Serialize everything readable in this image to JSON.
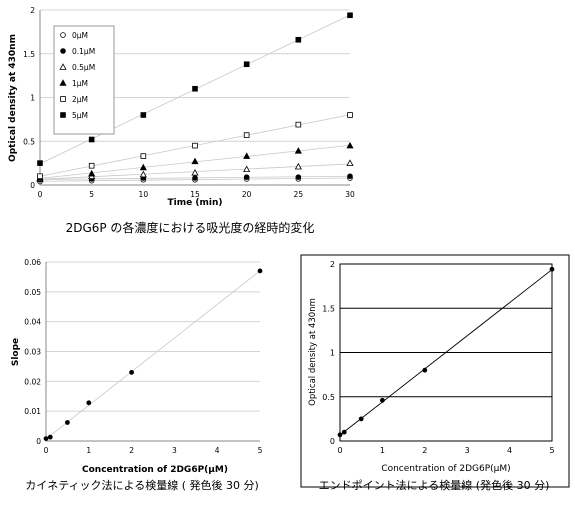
{
  "chart_data": [
    {
      "type": "scatter",
      "caption": "2DG6P の各濃度における吸光度の経時的変化",
      "xlabel": "Time (min)",
      "ylabel": "Optical density at 430nm",
      "xlim": [
        0,
        30
      ],
      "ylim": [
        0,
        2
      ],
      "xticks": [
        0,
        5,
        10,
        15,
        20,
        25,
        30
      ],
      "yticks": [
        0,
        0.5,
        1,
        1.5,
        2
      ],
      "ytick_labels": [
        "0",
        "0.5",
        "1",
        "1.5",
        "2"
      ],
      "grid": "horizontal",
      "legend_position": "top-left",
      "x": [
        0,
        5,
        10,
        15,
        20,
        25,
        30
      ],
      "series": [
        {
          "name": "0μM",
          "marker": "open-circle",
          "values": [
            0.04,
            0.05,
            0.06,
            0.06,
            0.07,
            0.07,
            0.08
          ]
        },
        {
          "name": "0.1μM",
          "marker": "filled-circle",
          "values": [
            0.06,
            0.07,
            0.08,
            0.08,
            0.09,
            0.09,
            0.1
          ]
        },
        {
          "name": "0.5μM",
          "marker": "open-triangle",
          "values": [
            0.07,
            0.1,
            0.12,
            0.14,
            0.18,
            0.21,
            0.25
          ]
        },
        {
          "name": "1μM",
          "marker": "filled-triangle",
          "values": [
            0.08,
            0.13,
            0.2,
            0.27,
            0.33,
            0.39,
            0.45
          ]
        },
        {
          "name": "2μM",
          "marker": "open-square",
          "values": [
            0.1,
            0.22,
            0.33,
            0.45,
            0.57,
            0.69,
            0.8
          ]
        },
        {
          "name": "5μM",
          "marker": "filled-square",
          "values": [
            0.25,
            0.52,
            0.8,
            1.1,
            1.38,
            1.66,
            1.94
          ]
        }
      ]
    },
    {
      "type": "scatter",
      "caption": "カイネティック法による検量線 ( 発色後 30 分)",
      "xlabel": "Concentration of 2DG6P(μM)",
      "ylabel": "Slope",
      "xlim": [
        0,
        5
      ],
      "ylim": [
        0,
        0.06
      ],
      "xticks": [
        0,
        1,
        2,
        3,
        4,
        5
      ],
      "yticks": [
        0,
        0.01,
        0.02,
        0.03,
        0.04,
        0.05,
        0.06
      ],
      "ytick_labels": [
        "0",
        "0.01",
        "0.02",
        "0.03",
        "0.04",
        "0.05",
        "0.06"
      ],
      "grid": "horizontal",
      "trendline": true,
      "x": [
        0,
        0.1,
        0.5,
        1,
        2,
        5
      ],
      "values": [
        0.0008,
        0.0013,
        0.0062,
        0.0128,
        0.023,
        0.057
      ]
    },
    {
      "type": "scatter",
      "caption": "エンドポイント法による検量線 (発色後 30 分)",
      "xlabel": "Concentration of 2DG6P(μM)",
      "ylabel": "Optical density at 430nm",
      "xlim": [
        0,
        5
      ],
      "ylim": [
        0,
        2
      ],
      "xticks": [
        0,
        1,
        2,
        3,
        4,
        5
      ],
      "yticks": [
        0,
        0.5,
        1,
        1.5,
        2
      ],
      "ytick_labels": [
        "0",
        "0.5",
        "1",
        "1.5",
        "2"
      ],
      "grid": "horizontal",
      "trendline": true,
      "x": [
        0,
        0.1,
        0.5,
        1,
        2,
        5
      ],
      "values": [
        0.07,
        0.1,
        0.25,
        0.46,
        0.8,
        1.94
      ]
    }
  ]
}
